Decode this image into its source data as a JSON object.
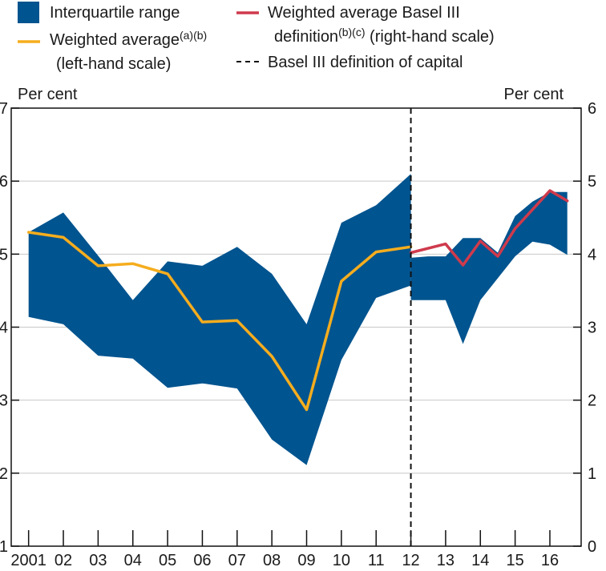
{
  "chart_data": {
    "type": "area",
    "title": "",
    "legend": {
      "placement": "top",
      "items": [
        {
          "key": "iqr",
          "kind": "area",
          "color": "#00548f",
          "lines": [
            {
              "text": "Interquartile range",
              "sup": ""
            }
          ]
        },
        {
          "key": "wa",
          "kind": "line",
          "color": "#f5ad1e",
          "lines": [
            {
              "text": "Weighted average",
              "sup": "(a)(b)"
            },
            {
              "text": "(left-hand scale)",
              "sup": ""
            }
          ]
        },
        {
          "key": "b3",
          "kind": "line",
          "color": "#cf3a4c",
          "lines": [
            {
              "text": "Weighted average Basel III",
              "sup": ""
            },
            {
              "text": "definition",
              "sup": "(b)(c)",
              "after": " (right-hand scale)"
            }
          ]
        },
        {
          "key": "div",
          "kind": "dashed",
          "color": "#111111",
          "lines": [
            {
              "text": "Basel III definition of capital",
              "sup": ""
            }
          ]
        }
      ]
    },
    "axes": {
      "left": {
        "unit_label": "Per cent",
        "ylim": [
          1,
          7
        ],
        "ticks": [
          "1",
          "2",
          "3",
          "4",
          "5",
          "6",
          "7"
        ]
      },
      "right": {
        "unit_label": "Per cent",
        "ylim": [
          0,
          6
        ],
        "ticks": [
          "0",
          "1",
          "2",
          "3",
          "4",
          "5",
          "6"
        ]
      },
      "x": {
        "range": [
          2000.5,
          2016.9
        ],
        "ticks": [
          {
            "v": 2001,
            "label": "2001"
          },
          {
            "v": 2002,
            "label": "02"
          },
          {
            "v": 2003,
            "label": "03"
          },
          {
            "v": 2004,
            "label": "04"
          },
          {
            "v": 2005,
            "label": "05"
          },
          {
            "v": 2006,
            "label": "06"
          },
          {
            "v": 2007,
            "label": "07"
          },
          {
            "v": 2008,
            "label": "08"
          },
          {
            "v": 2009,
            "label": "09"
          },
          {
            "v": 2010,
            "label": "10"
          },
          {
            "v": 2011,
            "label": "11"
          },
          {
            "v": 2012,
            "label": "12"
          },
          {
            "v": 2013,
            "label": "13"
          },
          {
            "v": 2014,
            "label": "14"
          },
          {
            "v": 2015,
            "label": "15"
          },
          {
            "v": 2016,
            "label": "16"
          }
        ]
      },
      "grid": "horizontal"
    },
    "divider_x": 2012,
    "series": [
      {
        "name": "Interquartile range",
        "type": "band",
        "axis": "left",
        "color": "#00548f",
        "x": [
          2001,
          2002,
          2003,
          2004,
          2005,
          2006,
          2007,
          2008,
          2009,
          2010,
          2011,
          2012
        ],
        "upper": [
          5.3,
          5.57,
          4.98,
          4.37,
          4.9,
          4.84,
          5.1,
          4.73,
          4.04,
          5.43,
          5.67,
          6.1
        ],
        "lower": [
          4.14,
          4.04,
          3.61,
          3.57,
          3.17,
          3.23,
          3.16,
          2.46,
          2.11,
          3.55,
          4.4,
          4.57
        ]
      },
      {
        "name": "Interquartile range",
        "type": "band",
        "axis": "right",
        "color": "#00548f",
        "x": [
          2012,
          2012.5,
          2013,
          2013.5,
          2014,
          2014.5,
          2015,
          2015.5,
          2016,
          2016.5
        ],
        "upper": [
          3.95,
          3.97,
          3.97,
          4.22,
          4.22,
          4.02,
          4.52,
          4.72,
          4.85,
          4.85
        ],
        "lower": [
          3.37,
          3.37,
          3.37,
          2.77,
          3.37,
          3.67,
          3.97,
          4.17,
          4.13,
          3.99
        ]
      },
      {
        "name": "Weighted average",
        "type": "line",
        "axis": "left",
        "color": "#f5ad1e",
        "x": [
          2001,
          2002,
          2003,
          2004,
          2005,
          2006,
          2007,
          2008,
          2009,
          2010,
          2011,
          2012
        ],
        "values": [
          5.3,
          5.23,
          4.84,
          4.87,
          4.73,
          4.07,
          4.09,
          3.6,
          2.87,
          4.63,
          5.03,
          5.1
        ]
      },
      {
        "name": "Weighted average Basel III definition",
        "type": "line",
        "axis": "right",
        "color": "#cf3a4c",
        "x": [
          2012,
          2013,
          2013.5,
          2014,
          2014.5,
          2015,
          2016,
          2016.5
        ],
        "values": [
          4.02,
          4.14,
          3.85,
          4.18,
          3.97,
          4.35,
          4.87,
          4.73
        ]
      }
    ]
  }
}
